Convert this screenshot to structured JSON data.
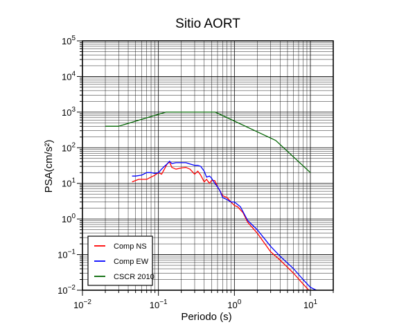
{
  "chart_data": {
    "type": "line",
    "title": "Sitio AORT",
    "xlabel": "Periodo (s)",
    "ylabel": "PSA(cm/s²)",
    "xscale": "log",
    "yscale": "log",
    "xlim": [
      0.01,
      20
    ],
    "ylim": [
      0.01,
      100000
    ],
    "grid": true,
    "legend_position": "bottom-left",
    "x_ticks": [
      {
        "base": "10",
        "exp": "−2",
        "value": 0.01
      },
      {
        "base": "10",
        "exp": "−1",
        "value": 0.1
      },
      {
        "base": "10",
        "exp": "0",
        "value": 1
      },
      {
        "base": "10",
        "exp": "1",
        "value": 10
      }
    ],
    "y_ticks": [
      {
        "base": "10",
        "exp": "−2",
        "value": 0.01
      },
      {
        "base": "10",
        "exp": "−1",
        "value": 0.1
      },
      {
        "base": "10",
        "exp": "0",
        "value": 1
      },
      {
        "base": "10",
        "exp": "1",
        "value": 10
      },
      {
        "base": "10",
        "exp": "2",
        "value": 100
      },
      {
        "base": "10",
        "exp": "3",
        "value": 1000
      },
      {
        "base": "10",
        "exp": "4",
        "value": 10000
      },
      {
        "base": "10",
        "exp": "5",
        "value": 100000
      }
    ],
    "series": [
      {
        "name": "Comp NS",
        "color": "#ff0000",
        "x": [
          0.045,
          0.05,
          0.055,
          0.06,
          0.07,
          0.08,
          0.09,
          0.1,
          0.11,
          0.12,
          0.13,
          0.14,
          0.15,
          0.17,
          0.2,
          0.23,
          0.26,
          0.3,
          0.33,
          0.36,
          0.4,
          0.43,
          0.47,
          0.5,
          0.55,
          0.6,
          0.65,
          0.7,
          0.8,
          0.9,
          1.0,
          1.1,
          1.3,
          1.5,
          2.0,
          3.0,
          4.0,
          6.0,
          8.0,
          10.0,
          12.0
        ],
        "y": [
          11,
          12,
          13,
          13,
          13,
          15,
          17,
          20,
          18,
          25,
          35,
          40,
          28,
          25,
          27,
          28,
          25,
          18,
          22,
          17,
          11,
          13,
          10,
          12,
          12,
          8,
          6,
          4.5,
          4,
          3,
          2.4,
          2.2,
          1.5,
          0.8,
          0.4,
          0.12,
          0.07,
          0.03,
          0.015,
          0.009,
          0.006
        ]
      },
      {
        "name": "Comp EW",
        "color": "#0000ff",
        "x": [
          0.045,
          0.05,
          0.06,
          0.07,
          0.08,
          0.09,
          0.1,
          0.11,
          0.12,
          0.13,
          0.14,
          0.15,
          0.17,
          0.2,
          0.23,
          0.26,
          0.3,
          0.33,
          0.36,
          0.4,
          0.43,
          0.47,
          0.5,
          0.55,
          0.6,
          0.65,
          0.7,
          0.8,
          0.9,
          1.0,
          1.2,
          1.5,
          2.0,
          3.0,
          4.0,
          6.0,
          8.0,
          10.0,
          12.0
        ],
        "y": [
          16,
          16,
          17,
          20,
          20,
          19,
          20,
          25,
          30,
          35,
          42,
          36,
          38,
          38,
          38,
          35,
          32,
          32,
          30,
          22,
          15,
          16,
          14,
          10,
          8,
          6,
          4,
          3.5,
          3,
          3,
          2.2,
          0.9,
          0.5,
          0.17,
          0.09,
          0.04,
          0.02,
          0.012,
          0.01
        ]
      },
      {
        "name": "CSCR 2010",
        "color": "#006400",
        "x": [
          0.02,
          0.03,
          0.125,
          0.5,
          0.56,
          3.5,
          10.0
        ],
        "y": [
          400,
          400,
          1000,
          1000,
          1000,
          160,
          20
        ]
      }
    ]
  }
}
